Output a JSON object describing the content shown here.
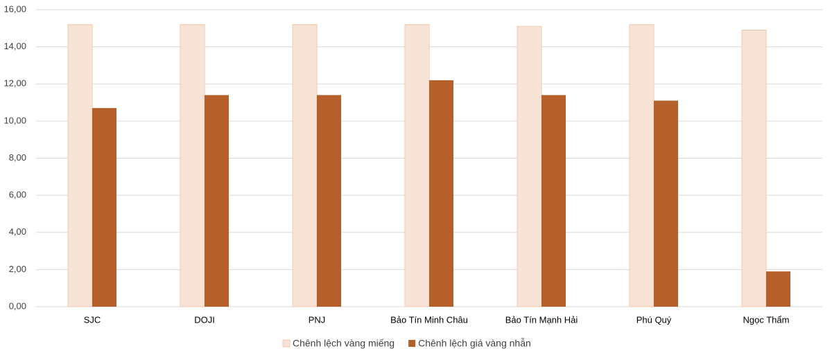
{
  "chart_data": {
    "type": "bar",
    "categories": [
      "SJC",
      "DOJI",
      "PNJ",
      "Bảo Tín Minh Châu",
      "Bảo Tín Mạnh Hải",
      "Phú Quý",
      "Ngọc Thẩm"
    ],
    "series": [
      {
        "name": "Chênh lệch vàng miếng",
        "color": "#f8e4d7",
        "values": [
          15.2,
          15.2,
          15.2,
          15.2,
          15.1,
          15.2,
          14.9
        ]
      },
      {
        "name": "Chênh lệch giá vàng nhẫn",
        "color": "#b5602a",
        "values": [
          10.7,
          11.4,
          11.4,
          12.2,
          11.4,
          11.1,
          1.9
        ]
      }
    ],
    "ylim": [
      0,
      16
    ],
    "yticks": [
      {
        "value": 0,
        "label": "0,00"
      },
      {
        "value": 2,
        "label": "2,00"
      },
      {
        "value": 4,
        "label": "4,00"
      },
      {
        "value": 6,
        "label": "6,00"
      },
      {
        "value": 8,
        "label": "8,00"
      },
      {
        "value": 10,
        "label": "10,00"
      },
      {
        "value": 12,
        "label": "12,00"
      },
      {
        "value": 14,
        "label": "14,00"
      },
      {
        "value": 16,
        "label": "16,00"
      }
    ],
    "grid": true,
    "legend": "bottom"
  }
}
